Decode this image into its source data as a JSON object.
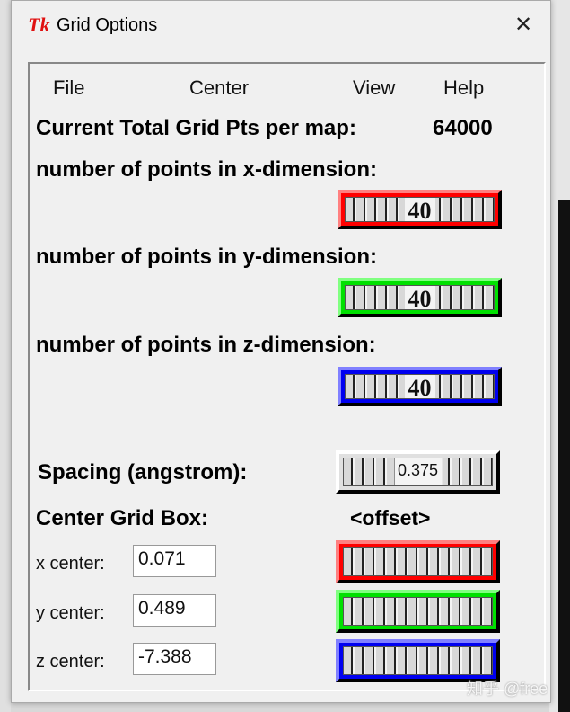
{
  "window": {
    "title": "Grid Options",
    "close": "✕",
    "logo": "Tk"
  },
  "menu": {
    "file": "File",
    "center": "Center",
    "view": "View",
    "help": "Help"
  },
  "total": {
    "label": "Current Total Grid Pts per map:",
    "value": "64000"
  },
  "x_dim": {
    "label": "number of points in x-dimension:",
    "value": "40",
    "color": "#ff0000"
  },
  "y_dim": {
    "label": "number of points in y-dimension:",
    "value": "40",
    "color": "#00e000"
  },
  "z_dim": {
    "label": "number of points in z-dimension:",
    "value": "40",
    "color": "#0000f0"
  },
  "spacing": {
    "label": "Spacing (angstrom):",
    "value": "0.375"
  },
  "center": {
    "label": "Center Grid Box:",
    "offset_label": "<offset>",
    "x": {
      "label": "x center:",
      "value": "0.071"
    },
    "y": {
      "label": "y center:",
      "value": "0.489"
    },
    "z": {
      "label": "z center:",
      "value": "-7.388"
    }
  },
  "watermark": "知乎 @free"
}
